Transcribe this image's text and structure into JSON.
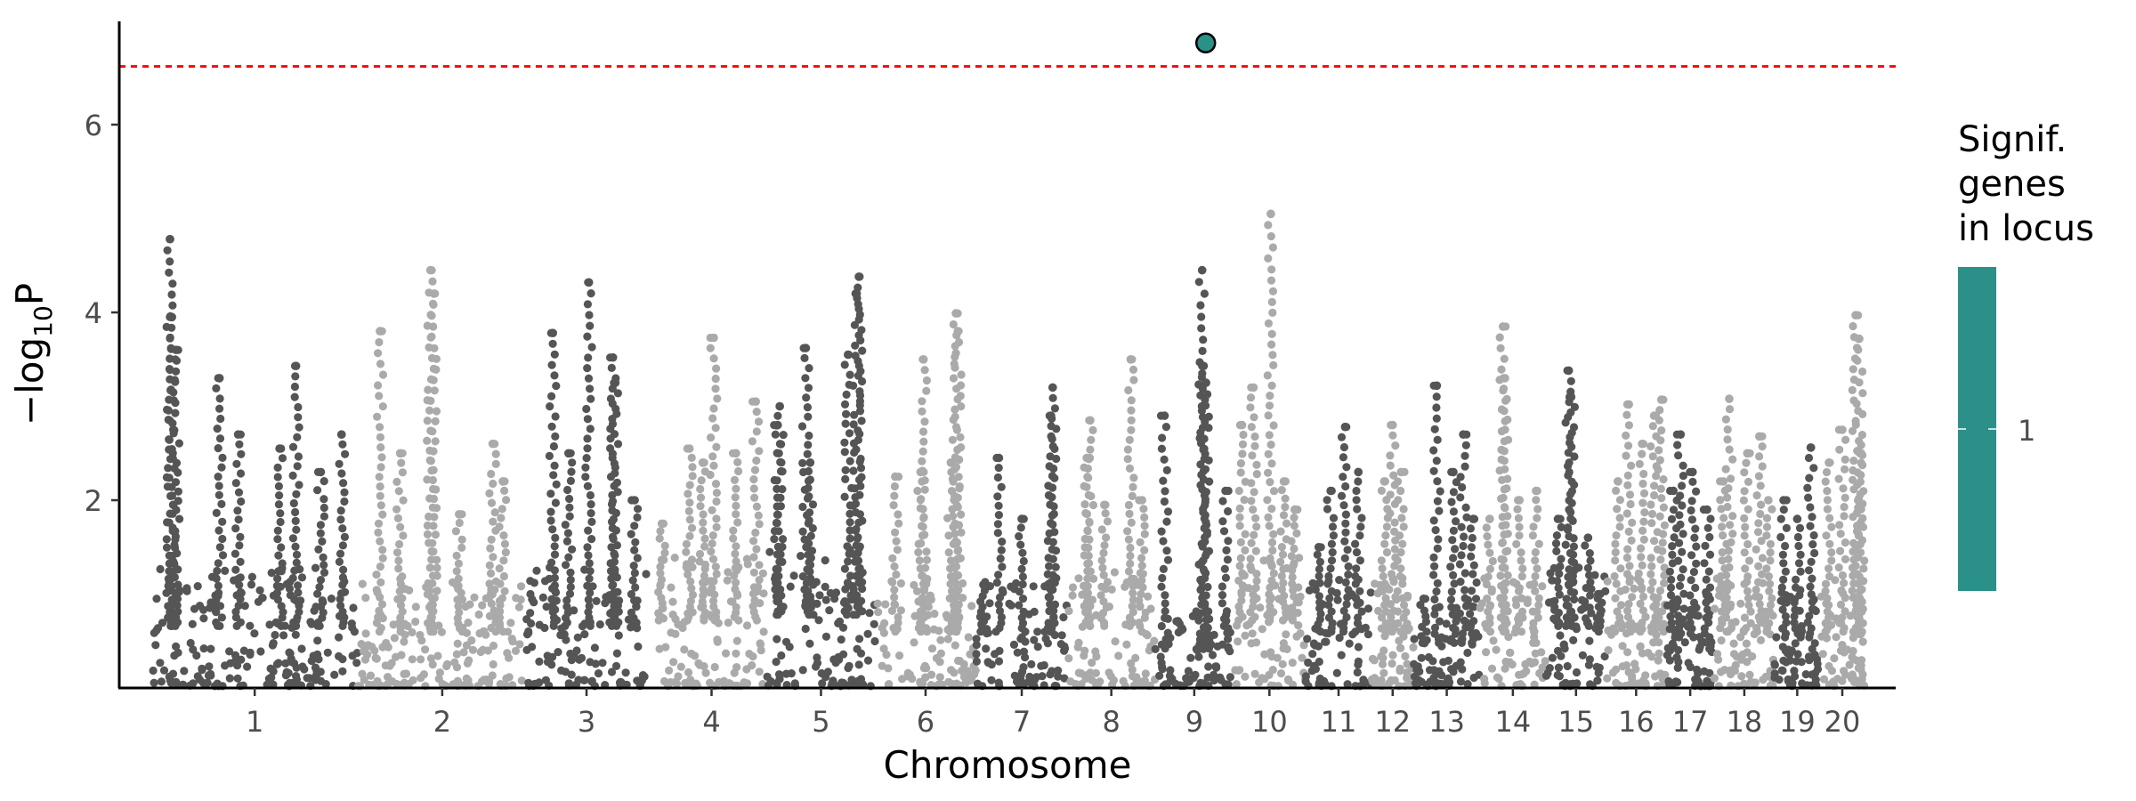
{
  "chart_data": {
    "type": "scatter",
    "title": "",
    "xlabel": "Chromosome",
    "ylabel_prefix": "−log",
    "ylabel_sub": "10",
    "ylabel_suffix": "P",
    "ylim": [
      0,
      7.1
    ],
    "yticks": [
      2,
      4,
      6
    ],
    "grid": false,
    "significance_threshold": 6.62,
    "threshold_color": "#ff0000",
    "point_colors": [
      "#555555",
      "#aaaaaa"
    ],
    "chromosomes": [
      {
        "label": "1",
        "start": 0,
        "end": 1720,
        "base": 1.1,
        "peaks": [
          [
            0.09,
            4.78
          ],
          [
            0.1,
            3.95
          ],
          [
            0.12,
            3.6
          ],
          [
            0.33,
            3.3
          ],
          [
            0.42,
            2.7
          ],
          [
            0.62,
            2.55
          ],
          [
            0.82,
            2.3
          ],
          [
            0.92,
            2.7
          ],
          [
            0.7,
            3.43
          ]
        ]
      },
      {
        "label": "2",
        "start": 1720,
        "end": 3120,
        "base": 1.0,
        "peaks": [
          [
            0.13,
            3.8
          ],
          [
            0.25,
            2.5
          ],
          [
            0.43,
            4.45
          ],
          [
            0.45,
            4.2
          ],
          [
            0.6,
            1.85
          ],
          [
            0.8,
            2.6
          ],
          [
            0.86,
            2.2
          ]
        ]
      },
      {
        "label": "3",
        "start": 3120,
        "end": 4120,
        "base": 1.1,
        "peaks": [
          [
            0.22,
            3.78
          ],
          [
            0.35,
            2.5
          ],
          [
            0.52,
            4.32
          ],
          [
            0.72,
            3.52
          ],
          [
            0.74,
            3.25
          ],
          [
            0.9,
            2.0
          ]
        ]
      },
      {
        "label": "4",
        "start": 4200,
        "end": 5120,
        "base": 1.2,
        "peaks": [
          [
            0.05,
            1.75
          ],
          [
            0.3,
            2.55
          ],
          [
            0.42,
            2.4
          ],
          [
            0.52,
            3.73
          ],
          [
            0.72,
            2.5
          ],
          [
            0.9,
            3.05
          ]
        ]
      },
      {
        "label": "5",
        "start": 5120,
        "end": 6020,
        "base": 1.3,
        "peaks": [
          [
            0.1,
            2.8
          ],
          [
            0.12,
            3.0
          ],
          [
            0.36,
            3.62
          ],
          [
            0.4,
            2.4
          ],
          [
            0.75,
            3.55
          ],
          [
            0.85,
            4.38
          ],
          [
            0.83,
            4.2
          ]
        ]
      },
      {
        "label": "6",
        "start": 6020,
        "end": 6860,
        "base": 1.0,
        "peaks": [
          [
            0.2,
            2.25
          ],
          [
            0.45,
            2.3
          ],
          [
            0.48,
            3.5
          ],
          [
            0.75,
            2.4
          ],
          [
            0.8,
            3.99
          ],
          [
            0.82,
            3.8
          ]
        ]
      },
      {
        "label": "7",
        "start": 6860,
        "end": 7620,
        "base": 1.0,
        "peaks": [
          [
            0.08,
            1.1
          ],
          [
            0.25,
            2.45
          ],
          [
            0.5,
            1.8
          ],
          [
            0.82,
            2.9
          ],
          [
            0.84,
            3.2
          ]
        ]
      },
      {
        "label": "8",
        "start": 7620,
        "end": 8350,
        "base": 1.1,
        "peaks": [
          [
            0.22,
            2.45
          ],
          [
            0.26,
            2.85
          ],
          [
            0.42,
            1.95
          ],
          [
            0.72,
            3.5
          ],
          [
            0.85,
            2.0
          ]
        ]
      },
      {
        "label": "9",
        "start": 8350,
        "end": 9000,
        "base": 0.7,
        "peaks": [
          [
            0.12,
            2.9
          ],
          [
            0.6,
            4.45
          ],
          [
            0.62,
            3.43
          ],
          [
            0.65,
            3.25
          ],
          [
            0.9,
            2.1
          ]
        ]
      },
      {
        "label": "10",
        "start": 9000,
        "end": 9600,
        "base": 1.2,
        "peaks": [
          [
            0.12,
            2.8
          ],
          [
            0.28,
            3.2
          ],
          [
            0.52,
            5.05
          ],
          [
            0.7,
            2.2
          ],
          [
            0.85,
            1.9
          ]
        ]
      },
      {
        "label": "11",
        "start": 9600,
        "end": 10150,
        "base": 1.0,
        "peaks": [
          [
            0.2,
            1.5
          ],
          [
            0.38,
            2.1
          ],
          [
            0.6,
            2.78
          ],
          [
            0.8,
            2.3
          ]
        ]
      },
      {
        "label": "12",
        "start": 10150,
        "end": 10500,
        "base": 1.0,
        "peaks": [
          [
            0.3,
            2.2
          ],
          [
            0.5,
            2.8
          ],
          [
            0.7,
            2.3
          ]
        ]
      },
      {
        "label": "13",
        "start": 10500,
        "end": 11050,
        "base": 0.8,
        "peaks": [
          [
            0.15,
            0.95
          ],
          [
            0.35,
            3.22
          ],
          [
            0.6,
            2.3
          ],
          [
            0.75,
            2.7
          ],
          [
            0.9,
            1.8
          ]
        ]
      },
      {
        "label": "14",
        "start": 11050,
        "end": 11600,
        "base": 1.0,
        "peaks": [
          [
            0.15,
            1.8
          ],
          [
            0.35,
            3.85
          ],
          [
            0.38,
            3.3
          ],
          [
            0.6,
            2.0
          ],
          [
            0.85,
            2.1
          ]
        ]
      },
      {
        "label": "15",
        "start": 11600,
        "end": 12100,
        "base": 1.1,
        "peaks": [
          [
            0.2,
            1.8
          ],
          [
            0.38,
            3.38
          ],
          [
            0.42,
            3.1
          ],
          [
            0.7,
            1.6
          ],
          [
            0.9,
            1.0
          ]
        ]
      },
      {
        "label": "16",
        "start": 12100,
        "end": 12600,
        "base": 1.0,
        "peaks": [
          [
            0.2,
            2.2
          ],
          [
            0.38,
            3.02
          ],
          [
            0.6,
            2.6
          ],
          [
            0.8,
            2.9
          ],
          [
            0.92,
            3.07
          ]
        ]
      },
      {
        "label": "17",
        "start": 12600,
        "end": 13000,
        "base": 0.9,
        "peaks": [
          [
            0.15,
            2.1
          ],
          [
            0.3,
            2.7
          ],
          [
            0.55,
            2.3
          ],
          [
            0.85,
            1.9
          ]
        ]
      },
      {
        "label": "18",
        "start": 13000,
        "end": 13500,
        "base": 1.0,
        "peaks": [
          [
            0.15,
            2.2
          ],
          [
            0.25,
            3.08
          ],
          [
            0.55,
            2.5
          ],
          [
            0.75,
            2.68
          ],
          [
            0.9,
            2.0
          ]
        ]
      },
      {
        "label": "19",
        "start": 13500,
        "end": 13880,
        "base": 0.9,
        "peaks": [
          [
            0.2,
            2.0
          ],
          [
            0.5,
            1.8
          ],
          [
            0.8,
            2.56
          ]
        ]
      },
      {
        "label": "20",
        "start": 13880,
        "end": 14250,
        "base": 1.0,
        "peaks": [
          [
            0.2,
            2.4
          ],
          [
            0.5,
            2.75
          ],
          [
            0.8,
            3.97
          ],
          [
            0.88,
            3.72
          ],
          [
            0.92,
            2.5
          ]
        ]
      }
    ],
    "significant_points": [
      {
        "chromosome": "9",
        "position": 8770,
        "value": 6.87,
        "genes_in_locus": 1
      }
    ],
    "legend": {
      "title_lines": [
        "Signif.",
        "genes",
        "in locus"
      ],
      "tick_label": "1",
      "color": "#2a9088",
      "placement": "right"
    }
  }
}
